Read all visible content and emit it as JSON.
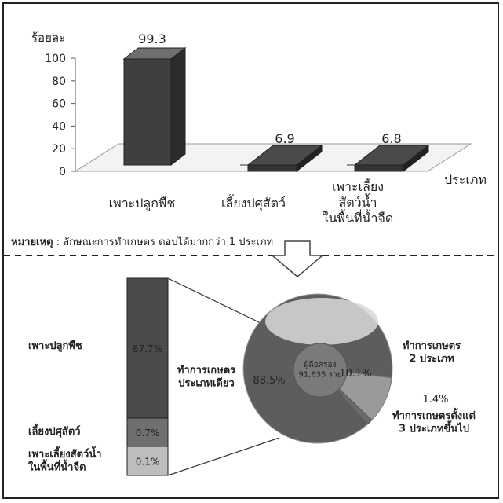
{
  "chart_data": [
    {
      "type": "bar",
      "categories": [
        "เพาะปลูกพืช",
        "เลี้ยงปศุสัตว์",
        "เพาะเลี้ยง\nสัตว์น้ำ\nในพื้นที่น้ำจืด"
      ],
      "values": [
        99.3,
        6.9,
        6.8
      ],
      "value_labels": [
        "99.3",
        "6.9",
        "6.8"
      ],
      "ylabel": "ร้อยละ",
      "xlabel": "ประเภท",
      "yticks": [
        "0",
        "20",
        "40",
        "60",
        "80",
        "100"
      ],
      "ylim": [
        0,
        100
      ]
    },
    {
      "type": "pie",
      "center_label": "ผู้ถือครอง\n91,635 ราย",
      "slices": [
        {
          "value": 88.5,
          "value_label": "88.5%",
          "label": "ทำการเกษตร\nประเภทเดียว",
          "color": "#5d5d5d"
        },
        {
          "value": 10.1,
          "value_label": "10.1%",
          "label": "ทำการเกษตร\n2 ประเภท",
          "color": "#9a9a9a"
        },
        {
          "value": 1.4,
          "value_label": "1.4%",
          "label": "ทำการเกษตรตั้งแต่\n3 ประเภทขึ้นไป",
          "color": "#6a6a6a"
        }
      ]
    },
    {
      "type": "bar",
      "stacked": true,
      "segments": [
        {
          "label": "เพาะปลูกพืช",
          "value": 87.7,
          "value_label": "87.7%",
          "color": "#4b4b4b"
        },
        {
          "label": "เลี้ยงปศุสัตว์",
          "value": 0.7,
          "value_label": "0.7%",
          "color": "#6f6f6f"
        },
        {
          "label": "เพาะเลี้ยงสัตว์น้ำ\nในพื้นที่น้ำจืด",
          "value": 0.1,
          "value_label": "0.1%",
          "color": "#bdbdbd"
        }
      ]
    }
  ],
  "note": {
    "bold": "หมายเหตุ",
    "text": " : ลักษณะการทำเกษตร ตอบได้มากกว่า 1 ประเภท"
  },
  "colors": {
    "bar_front": "#3a3a3a",
    "bar_top": "#6a6a6a",
    "floor": "#cfcfcf"
  }
}
